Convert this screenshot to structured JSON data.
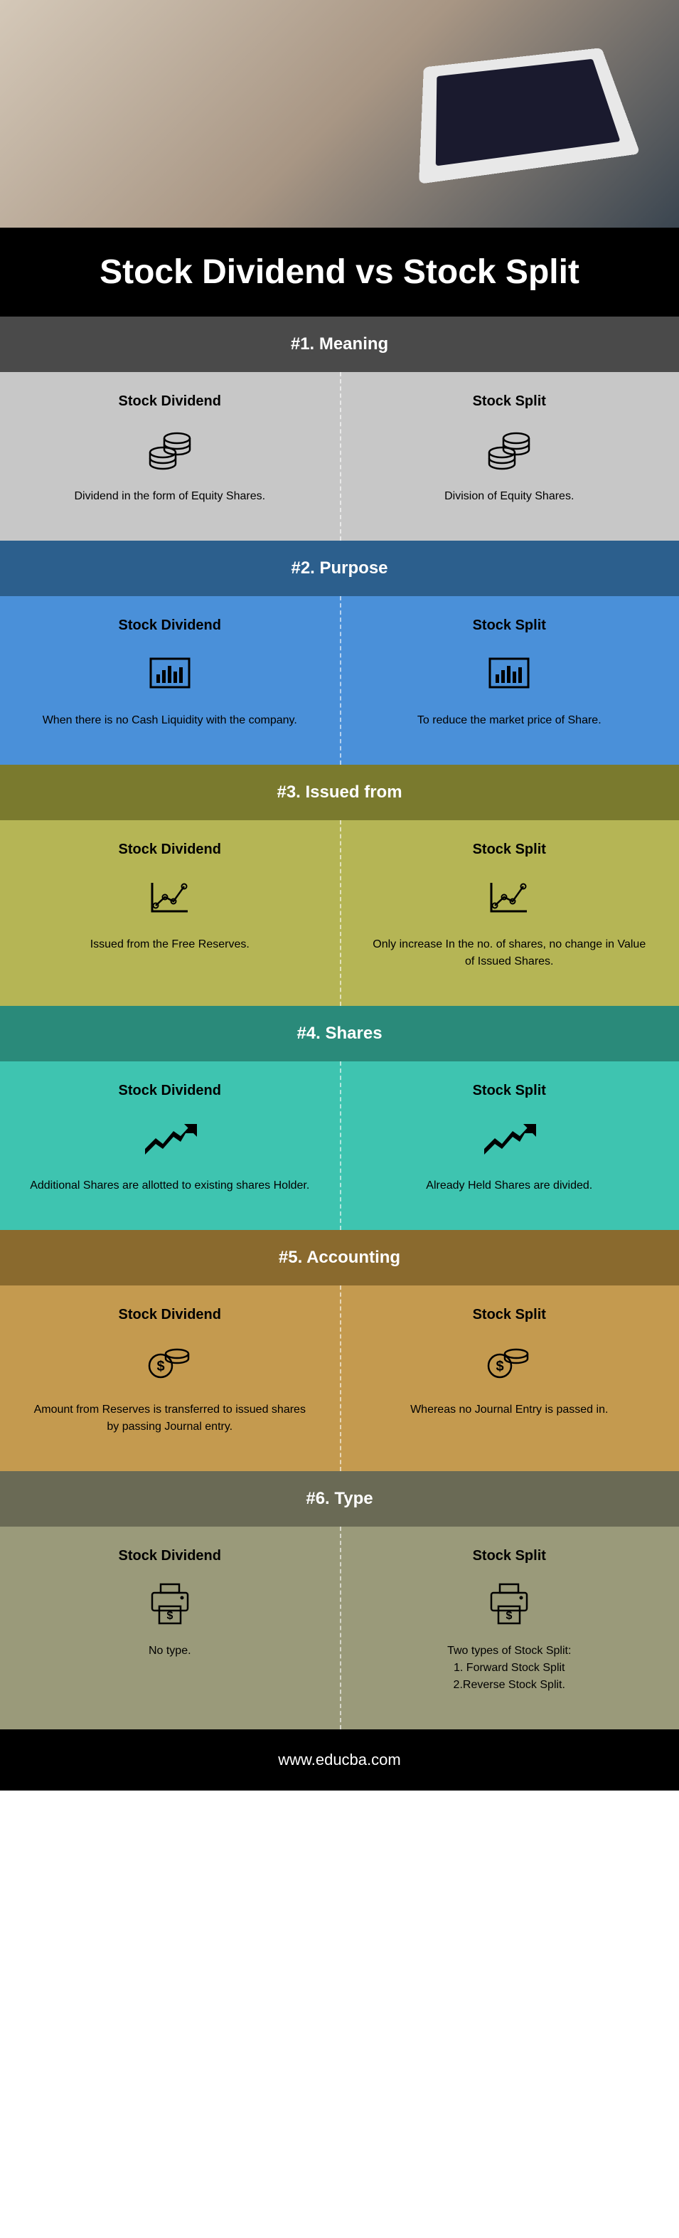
{
  "title": "Stock Dividend vs Stock Split",
  "footer": "www.educba.com",
  "left_label": "Stock Dividend",
  "right_label": "Stock Split",
  "sections": [
    {
      "header": "#1. Meaning",
      "header_bg": "#4a4a4a",
      "body_bg": "#c7c7c7",
      "left_text": "Dividend in the form of Equity Shares.",
      "right_text": "Division of Equity Shares.",
      "icon": "coins"
    },
    {
      "header": "#2. Purpose",
      "header_bg": "#2c5f8d",
      "body_bg": "#4a90d9",
      "left_text": "When there is no Cash Liquidity with the company.",
      "right_text": "To reduce the market price of Share.",
      "icon": "barchart"
    },
    {
      "header": "#3. Issued from",
      "header_bg": "#7a7a2e",
      "body_bg": "#b5b555",
      "left_text": "Issued from the Free Reserves.",
      "right_text": "Only increase In the no. of shares, no change in Value of Issued Shares.",
      "icon": "linechart"
    },
    {
      "header": "#4. Shares",
      "header_bg": "#2a8a7a",
      "body_bg": "#3ec4b0",
      "left_text": "Additional Shares are allotted to existing shares Holder.",
      "right_text": "Already Held Shares are divided.",
      "icon": "trend"
    },
    {
      "header": "#5. Accounting",
      "header_bg": "#8a6a2e",
      "body_bg": "#c49a4f",
      "left_text": "Amount from Reserves is transferred to issued shares by passing Journal entry.",
      "right_text": "Whereas no Journal Entry is passed in.",
      "icon": "dollarcoins"
    },
    {
      "header": "#6. Type",
      "header_bg": "#6a6a55",
      "body_bg": "#9a9a7a",
      "left_text": "No type.",
      "right_text": "Two types of Stock Split:\n1. Forward Stock Split\n2.Reverse Stock Split.",
      "icon": "printer"
    }
  ]
}
